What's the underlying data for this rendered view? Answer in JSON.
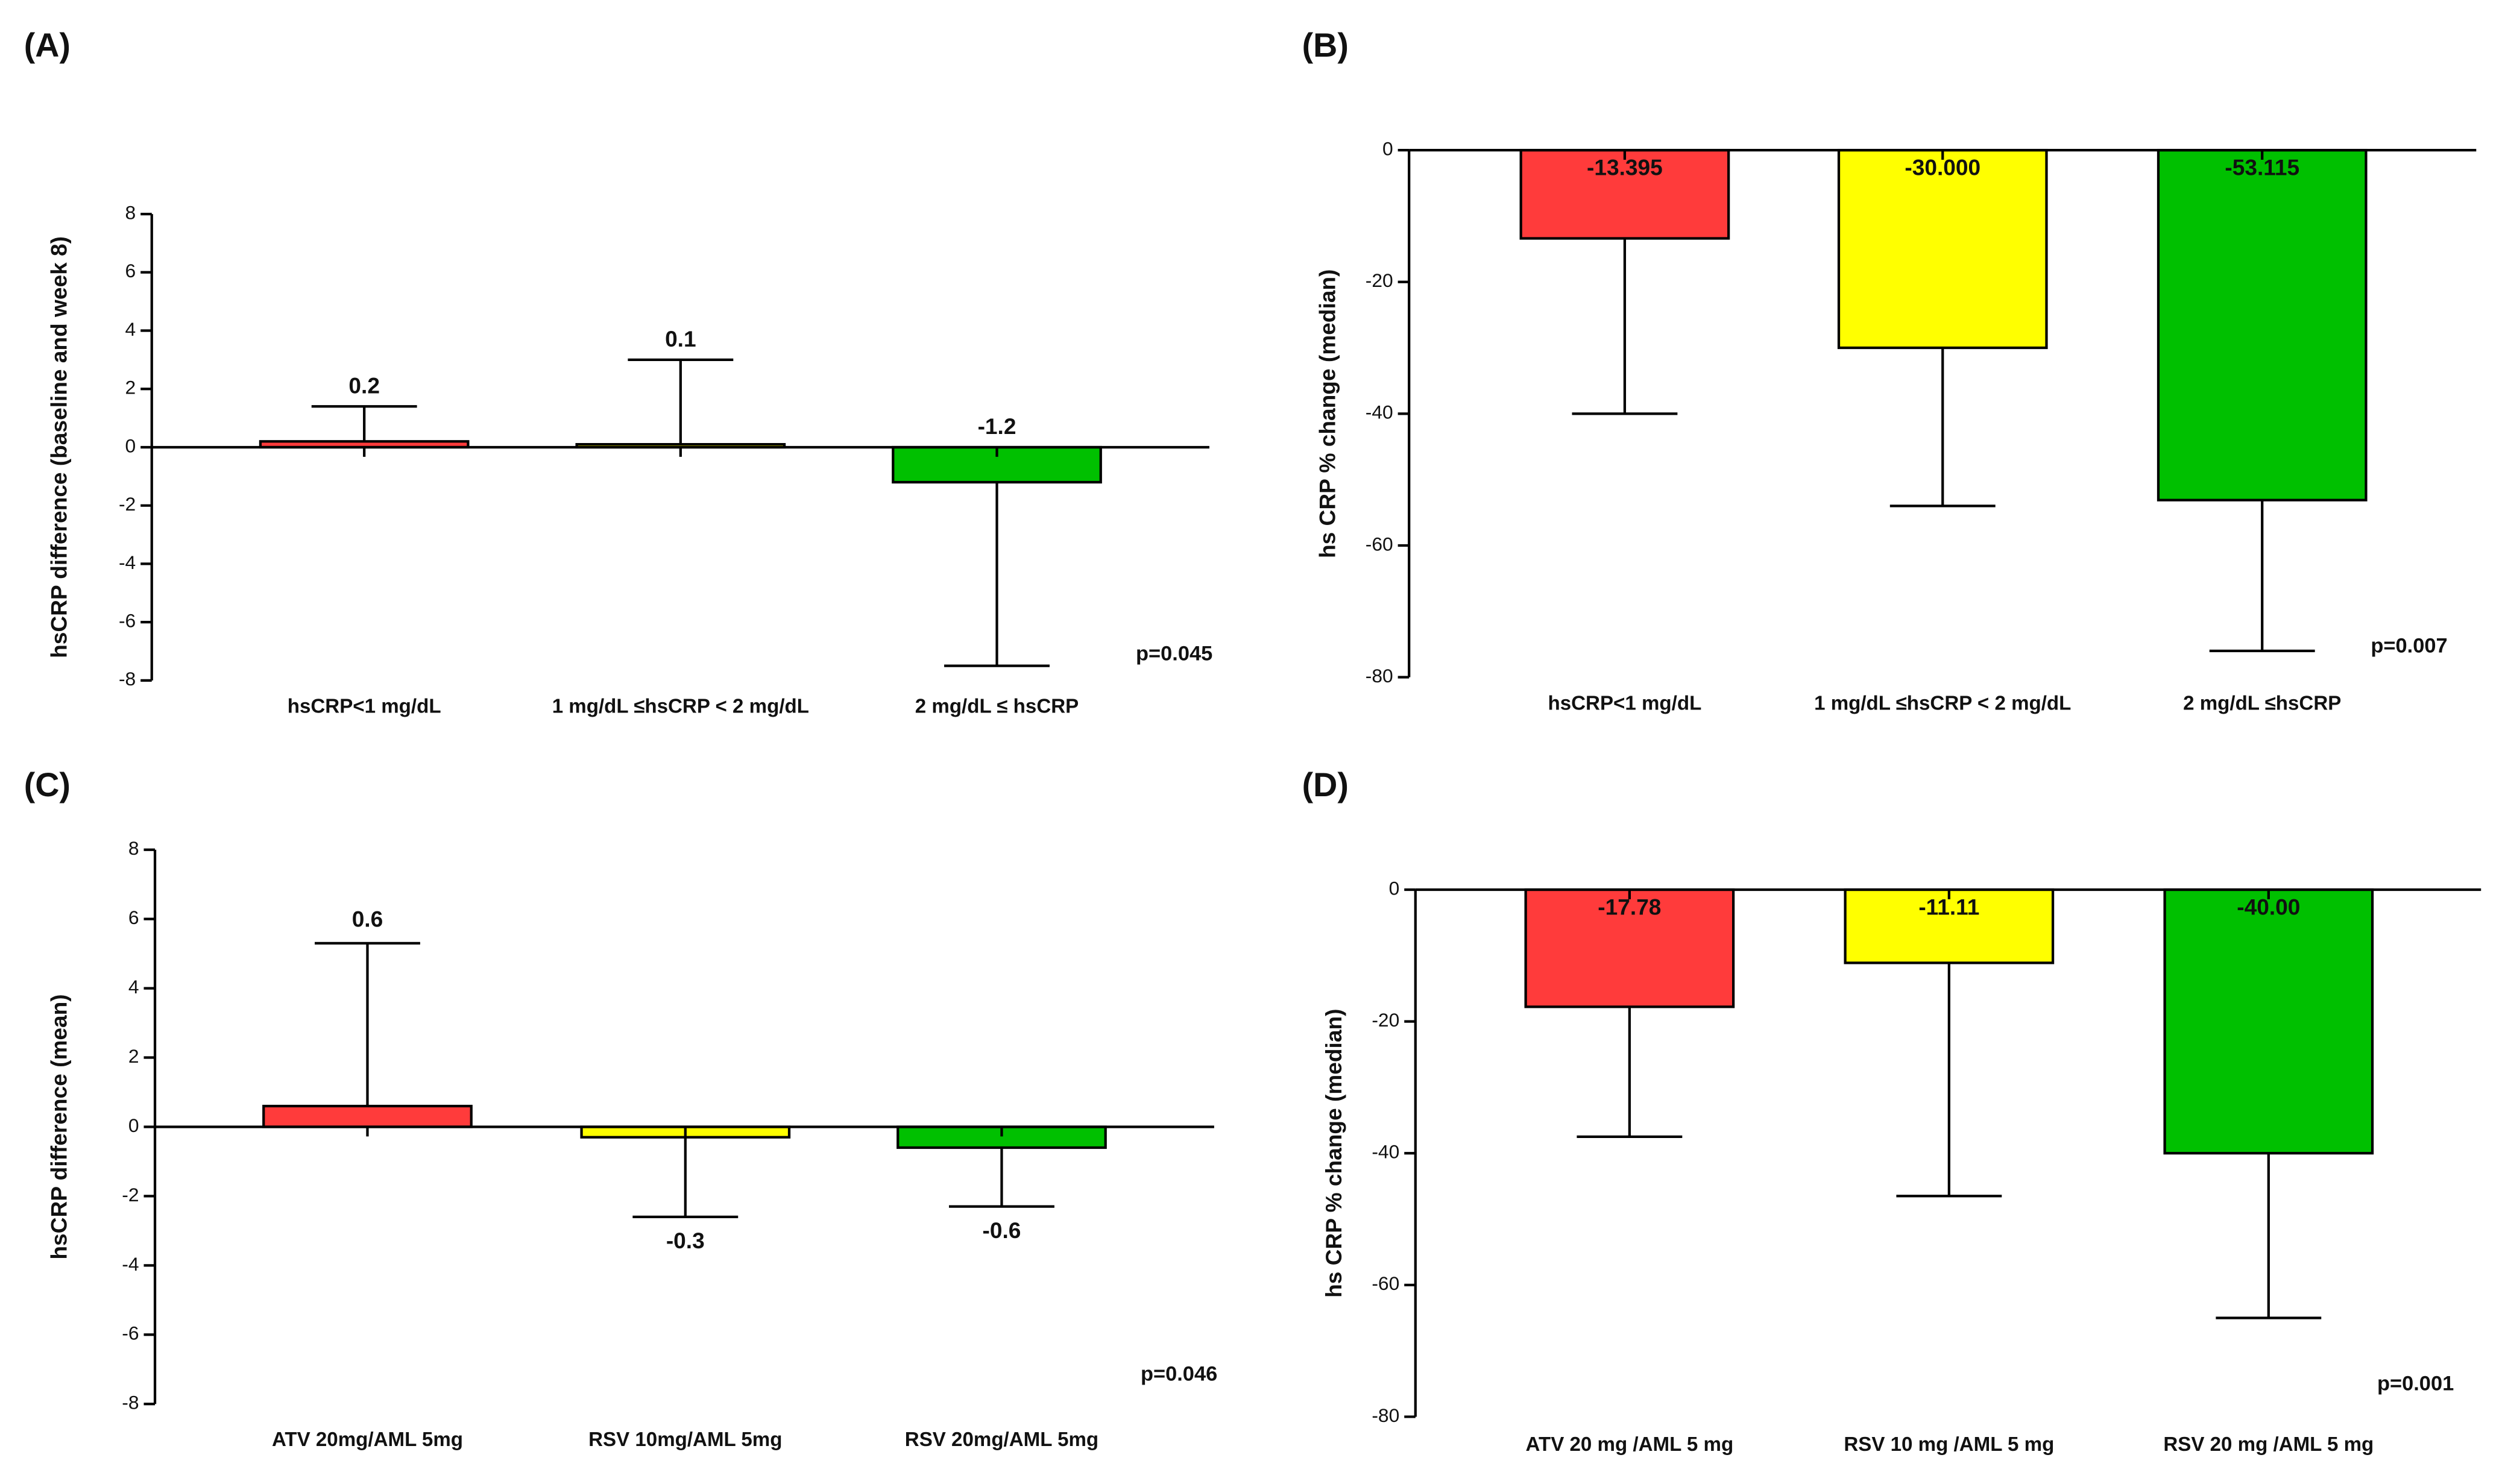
{
  "chart_data": [
    {
      "type": "bar",
      "panel_label": "(A)",
      "y_label": "hsCRP difference (baseline and week 8)",
      "annotation": "p=0.045",
      "categories": [
        "hsCRP<1 mg/dL",
        "1 mg/dL ≤hsCRP < 2 mg/dL",
        "2 mg/dL ≤ hsCRP"
      ],
      "values": [
        0.2,
        0.1,
        -1.2
      ],
      "errors": [
        1.2,
        2.9,
        6.3
      ],
      "colors": [
        "#ff3b3b",
        "#ffff00",
        "#00c000"
      ],
      "ylim": [
        -8,
        8
      ],
      "yticks": [
        -8,
        -6,
        -4,
        -2,
        0,
        2,
        4,
        6,
        8
      ]
    },
    {
      "type": "bar",
      "panel_label": "(B)",
      "y_label": "hs CRP % change (median)",
      "annotation": "p=0.007",
      "categories": [
        "hsCRP<1 mg/dL",
        "1 mg/dL ≤hsCRP < 2 mg/dL",
        "2 mg/dL ≤hsCRP"
      ],
      "values": [
        -13.395,
        -30.0,
        -53.115
      ],
      "value_labels": [
        "-13.395",
        "-30.000",
        "-53.115"
      ],
      "errors": [
        26.605,
        24,
        22.885
      ],
      "colors": [
        "#ff3b3b",
        "#ffff00",
        "#00c000"
      ],
      "ylim": [
        -80,
        0
      ],
      "yticks": [
        -80,
        -60,
        -40,
        -20,
        0
      ]
    },
    {
      "type": "bar",
      "panel_label": "(C)",
      "y_label": "hsCRP difference (mean)",
      "annotation": "p=0.046",
      "categories": [
        "ATV 20mg/AML 5mg",
        "RSV 10mg/AML 5mg",
        "RSV 20mg/AML 5mg"
      ],
      "values": [
        0.6,
        -0.3,
        -0.6
      ],
      "errors": [
        4.7,
        2.3,
        1.7
      ],
      "colors": [
        "#ff3b3b",
        "#ffff00",
        "#00c000"
      ],
      "ylim": [
        -8,
        8
      ],
      "yticks": [
        -8,
        -6,
        -4,
        -2,
        0,
        2,
        4,
        6,
        8
      ]
    },
    {
      "type": "bar",
      "panel_label": "(D)",
      "y_label": "hs CRP % change (median)",
      "annotation": "p=0.001",
      "categories": [
        "ATV 20 mg /AML 5 mg",
        "RSV 10 mg /AML 5 mg",
        "RSV 20 mg /AML 5 mg"
      ],
      "values": [
        -17.78,
        -11.11,
        -40.0
      ],
      "value_labels": [
        "-17.78",
        "-11.11",
        "-40.00"
      ],
      "errors": [
        19.72,
        35.39,
        25
      ],
      "colors": [
        "#ff3b3b",
        "#ffff00",
        "#00c000"
      ],
      "ylim": [
        -80,
        0
      ],
      "yticks": [
        -80,
        -60,
        -40,
        -20,
        0
      ]
    }
  ]
}
